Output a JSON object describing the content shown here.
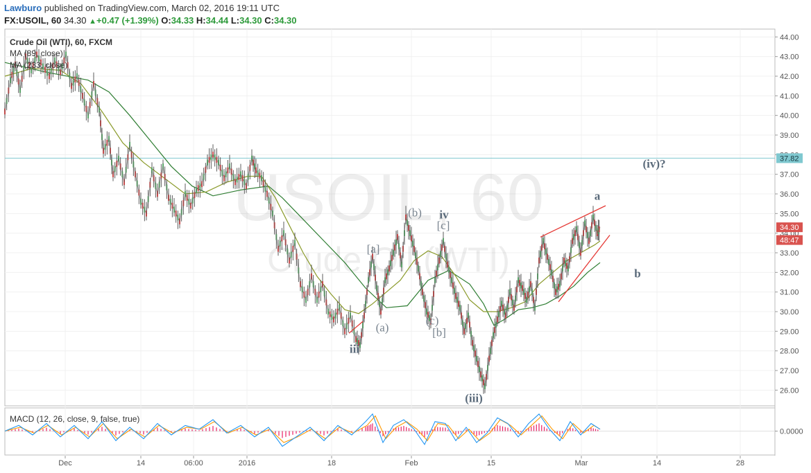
{
  "header": {
    "author": "Lawburo",
    "published_text": "published on TradingView.com, March 02, 2016 19:11 UTC",
    "symbol": "FX:USOIL, 60",
    "last": "34.30",
    "change": "+0.47 (+1.39%)",
    "o_label": "O:",
    "o_value": "34.33",
    "h_label": "H:",
    "h_value": "34.44",
    "l_label": "L:",
    "l_value": "34.30",
    "c_label": "C:",
    "c_value": "34.30"
  },
  "chart_data": {
    "type": "line",
    "title": "Crude Oil (WTI), 60, FXCM",
    "watermark": "USOIL, 60",
    "watermark_sub": "Crude Oil (WTI)",
    "indicators": [
      "MA (89, close)",
      "MA (233, close)"
    ],
    "y_axis": {
      "ticks": [
        "44.00",
        "43.00",
        "42.00",
        "41.00",
        "40.00",
        "39.00",
        "38.00",
        "37.00",
        "36.00",
        "35.00",
        "34.00",
        "33.00",
        "32.00",
        "31.00",
        "30.00",
        "29.00",
        "28.00",
        "27.00",
        "26.00"
      ],
      "range": [
        25.2,
        44.4
      ]
    },
    "x_axis": {
      "ticks": [
        "Dec",
        "14",
        "06:00",
        "2016",
        "18",
        "Feb",
        "15",
        "Mar",
        "14",
        "28"
      ]
    },
    "price_labels": [
      {
        "text": "37.82",
        "value": 37.82,
        "color": "#7fc8d0"
      },
      {
        "text": "34.30",
        "value": 34.3,
        "color": "#d9534f"
      },
      {
        "text": "48:47",
        "value": 33.65,
        "color": "#d9534f"
      }
    ],
    "horizontal_line": 37.82,
    "price_path": [
      [
        0,
        40.2
      ],
      [
        8,
        41.8
      ],
      [
        15,
        42.6
      ],
      [
        22,
        41.3
      ],
      [
        30,
        43.0
      ],
      [
        38,
        42.3
      ],
      [
        46,
        43.1
      ],
      [
        55,
        42.5
      ],
      [
        64,
        42.0
      ],
      [
        72,
        42.8
      ],
      [
        80,
        42.2
      ],
      [
        88,
        43.1
      ],
      [
        96,
        41.5
      ],
      [
        104,
        42.0
      ],
      [
        112,
        41.0
      ],
      [
        120,
        40.0
      ],
      [
        128,
        41.6
      ],
      [
        136,
        40.3
      ],
      [
        142,
        38.2
      ],
      [
        150,
        38.8
      ],
      [
        156,
        37.0
      ],
      [
        164,
        37.8
      ],
      [
        172,
        36.6
      ],
      [
        180,
        38.5
      ],
      [
        188,
        37.0
      ],
      [
        196,
        35.6
      ],
      [
        204,
        35.0
      ],
      [
        212,
        37.2
      ],
      [
        220,
        36.0
      ],
      [
        228,
        37.4
      ],
      [
        236,
        35.8
      ],
      [
        244,
        35.2
      ],
      [
        252,
        34.6
      ],
      [
        260,
        36.0
      ],
      [
        268,
        35.4
      ],
      [
        276,
        36.2
      ],
      [
        284,
        36.5
      ],
      [
        292,
        37.6
      ],
      [
        300,
        38.0
      ],
      [
        308,
        37.6
      ],
      [
        316,
        36.8
      ],
      [
        324,
        37.4
      ],
      [
        332,
        36.6
      ],
      [
        340,
        37.0
      ],
      [
        348,
        36.4
      ],
      [
        356,
        37.8
      ],
      [
        362,
        37.2
      ],
      [
        370,
        36.8
      ],
      [
        378,
        36.0
      ],
      [
        386,
        35.0
      ],
      [
        394,
        33.2
      ],
      [
        402,
        34.0
      ],
      [
        410,
        32.6
      ],
      [
        418,
        33.5
      ],
      [
        426,
        31.4
      ],
      [
        434,
        30.6
      ],
      [
        442,
        31.8
      ],
      [
        450,
        30.6
      ],
      [
        458,
        31.4
      ],
      [
        466,
        30.0
      ],
      [
        474,
        29.6
      ],
      [
        482,
        30.2
      ],
      [
        490,
        29.0
      ],
      [
        498,
        29.8
      ],
      [
        506,
        28.6
      ],
      [
        512,
        28.3
      ],
      [
        518,
        29.8
      ],
      [
        524,
        31.6
      ],
      [
        530,
        32.8
      ],
      [
        536,
        31.2
      ],
      [
        542,
        30.0
      ],
      [
        548,
        31.6
      ],
      [
        554,
        32.2
      ],
      [
        560,
        33.0
      ],
      [
        566,
        33.8
      ],
      [
        572,
        32.4
      ],
      [
        578,
        34.8
      ],
      [
        584,
        34.0
      ],
      [
        590,
        33.2
      ],
      [
        596,
        32.2
      ],
      [
        602,
        31.0
      ],
      [
        608,
        30.0
      ],
      [
        614,
        29.5
      ],
      [
        620,
        31.6
      ],
      [
        626,
        32.6
      ],
      [
        632,
        33.6
      ],
      [
        638,
        32.4
      ],
      [
        644,
        31.6
      ],
      [
        650,
        30.8
      ],
      [
        656,
        30.2
      ],
      [
        662,
        29.0
      ],
      [
        668,
        29.8
      ],
      [
        674,
        28.4
      ],
      [
        680,
        27.6
      ],
      [
        686,
        26.8
      ],
      [
        692,
        26.2
      ],
      [
        698,
        27.6
      ],
      [
        704,
        28.8
      ],
      [
        710,
        29.6
      ],
      [
        716,
        30.4
      ],
      [
        722,
        29.8
      ],
      [
        728,
        31.0
      ],
      [
        734,
        30.2
      ],
      [
        740,
        31.6
      ],
      [
        746,
        31.2
      ],
      [
        752,
        30.6
      ],
      [
        758,
        31.4
      ],
      [
        764,
        30.2
      ],
      [
        770,
        32.6
      ],
      [
        776,
        33.6
      ],
      [
        782,
        32.8
      ],
      [
        788,
        32.0
      ],
      [
        794,
        31.0
      ],
      [
        800,
        31.4
      ],
      [
        806,
        32.6
      ],
      [
        812,
        32.2
      ],
      [
        818,
        33.6
      ],
      [
        824,
        34.2
      ],
      [
        830,
        33.0
      ],
      [
        836,
        34.5
      ],
      [
        842,
        33.6
      ],
      [
        848,
        34.8
      ],
      [
        854,
        34.0
      ],
      [
        858,
        34.3
      ]
    ],
    "ma89_path": [
      [
        0,
        42.0
      ],
      [
        40,
        42.4
      ],
      [
        80,
        42.3
      ],
      [
        110,
        41.6
      ],
      [
        140,
        40.2
      ],
      [
        170,
        38.6
      ],
      [
        200,
        37.6
      ],
      [
        230,
        36.8
      ],
      [
        260,
        36.0
      ],
      [
        290,
        36.1
      ],
      [
        320,
        36.6
      ],
      [
        350,
        36.9
      ],
      [
        370,
        36.9
      ],
      [
        390,
        35.8
      ],
      [
        410,
        34.4
      ],
      [
        430,
        33.0
      ],
      [
        450,
        31.8
      ],
      [
        470,
        30.9
      ],
      [
        490,
        30.1
      ],
      [
        510,
        29.9
      ],
      [
        530,
        30.4
      ],
      [
        550,
        31.0
      ],
      [
        570,
        31.6
      ],
      [
        590,
        32.6
      ],
      [
        610,
        33.1
      ],
      [
        630,
        32.8
      ],
      [
        650,
        31.8
      ],
      [
        670,
        30.6
      ],
      [
        690,
        30.0
      ],
      [
        710,
        30.0
      ],
      [
        730,
        30.2
      ],
      [
        750,
        30.5
      ],
      [
        770,
        31.4
      ],
      [
        790,
        32.0
      ],
      [
        810,
        32.6
      ],
      [
        830,
        33.0
      ],
      [
        850,
        33.4
      ],
      [
        858,
        33.6
      ]
    ],
    "ma233_path": [
      [
        0,
        42.7
      ],
      [
        60,
        42.2
      ],
      [
        120,
        41.8
      ],
      [
        150,
        41.2
      ],
      [
        180,
        40.0
      ],
      [
        210,
        38.7
      ],
      [
        240,
        37.4
      ],
      [
        270,
        36.4
      ],
      [
        300,
        35.9
      ],
      [
        340,
        36.2
      ],
      [
        380,
        36.4
      ],
      [
        400,
        35.8
      ],
      [
        430,
        34.7
      ],
      [
        460,
        33.6
      ],
      [
        490,
        32.5
      ],
      [
        520,
        31.2
      ],
      [
        550,
        30.2
      ],
      [
        580,
        30.3
      ],
      [
        610,
        31.6
      ],
      [
        640,
        32.1
      ],
      [
        670,
        31.4
      ],
      [
        690,
        30.4
      ],
      [
        705,
        29.3
      ],
      [
        720,
        29.6
      ],
      [
        740,
        30.1
      ],
      [
        760,
        30.2
      ],
      [
        780,
        30.4
      ],
      [
        800,
        30.8
      ],
      [
        820,
        31.3
      ],
      [
        840,
        32.0
      ],
      [
        858,
        32.5
      ]
    ],
    "trendlines": [
      {
        "from": [
          772,
          33.8
        ],
        "to": [
          866,
          35.4
        ]
      },
      {
        "from": [
          798,
          30.5
        ],
        "to": [
          872,
          33.9
        ]
      },
      {
        "from": [
          496,
          28.9
        ],
        "to": [
          516,
          29.5
        ]
      }
    ],
    "wave_labels": [
      {
        "text": "iii",
        "x": 504,
        "value": 27.9,
        "bold": true
      },
      {
        "text": "[a]",
        "x": 531,
        "value": 33.0,
        "bold": false
      },
      {
        "text": "(a)",
        "x": 544,
        "value": 29.0,
        "bold": false
      },
      {
        "text": "(b)",
        "x": 591,
        "value": 34.85,
        "bold": false
      },
      {
        "text": "iv",
        "x": 633,
        "value": 34.75,
        "bold": true
      },
      {
        "text": "[c]",
        "x": 632,
        "value": 34.2,
        "bold": false
      },
      {
        "text": "(c)",
        "x": 616,
        "value": 29.35,
        "bold": false
      },
      {
        "text": "[b]",
        "x": 626,
        "value": 28.75,
        "bold": false
      },
      {
        "text": "(iii)",
        "x": 676,
        "value": 25.4,
        "bold": true
      },
      {
        "text": "a",
        "x": 854,
        "value": 35.7,
        "bold": true
      },
      {
        "text": "(iv)?",
        "x": 936,
        "value": 37.35,
        "bold": true
      },
      {
        "text": "b",
        "x": 912,
        "value": 31.75,
        "bold": true
      }
    ],
    "macd": {
      "label": "MACD (12, 26, close, 9, false, true)",
      "axis_label": "0.0000",
      "range": [
        -1.0,
        1.0
      ],
      "macd_path": [
        [
          0,
          0.0
        ],
        [
          20,
          0.3
        ],
        [
          40,
          -0.2
        ],
        [
          60,
          0.4
        ],
        [
          80,
          -0.3
        ],
        [
          100,
          0.3
        ],
        [
          120,
          -0.4
        ],
        [
          140,
          0.5
        ],
        [
          160,
          -0.5
        ],
        [
          180,
          0.2
        ],
        [
          200,
          -0.4
        ],
        [
          220,
          0.4
        ],
        [
          240,
          -0.2
        ],
        [
          260,
          0.3
        ],
        [
          280,
          0.1
        ],
        [
          300,
          0.6
        ],
        [
          320,
          -0.1
        ],
        [
          340,
          0.3
        ],
        [
          360,
          -0.3
        ],
        [
          380,
          0.2
        ],
        [
          400,
          -0.8
        ],
        [
          420,
          -0.3
        ],
        [
          440,
          0.2
        ],
        [
          460,
          -0.5
        ],
        [
          480,
          0.3
        ],
        [
          500,
          -0.2
        ],
        [
          520,
          0.5
        ],
        [
          530,
          0.9
        ],
        [
          545,
          -0.6
        ],
        [
          560,
          0.3
        ],
        [
          575,
          0.6
        ],
        [
          590,
          0.1
        ],
        [
          605,
          -0.7
        ],
        [
          620,
          0.5
        ],
        [
          635,
          0.4
        ],
        [
          650,
          -0.5
        ],
        [
          665,
          0.2
        ],
        [
          680,
          -0.6
        ],
        [
          695,
          -0.1
        ],
        [
          710,
          0.7
        ],
        [
          725,
          0.4
        ],
        [
          740,
          -0.3
        ],
        [
          755,
          0.4
        ],
        [
          770,
          0.9
        ],
        [
          785,
          0.1
        ],
        [
          800,
          -0.5
        ],
        [
          815,
          0.5
        ],
        [
          830,
          -0.2
        ],
        [
          845,
          0.4
        ],
        [
          858,
          0.1
        ]
      ],
      "signal_path": [
        [
          0,
          0.0
        ],
        [
          22,
          0.2
        ],
        [
          42,
          -0.1
        ],
        [
          62,
          0.3
        ],
        [
          82,
          -0.2
        ],
        [
          102,
          0.2
        ],
        [
          122,
          -0.3
        ],
        [
          142,
          0.4
        ],
        [
          162,
          -0.4
        ],
        [
          182,
          0.1
        ],
        [
          202,
          -0.3
        ],
        [
          222,
          0.3
        ],
        [
          242,
          -0.1
        ],
        [
          262,
          0.2
        ],
        [
          282,
          0.1
        ],
        [
          302,
          0.5
        ],
        [
          322,
          -0.1
        ],
        [
          342,
          0.2
        ],
        [
          362,
          -0.2
        ],
        [
          382,
          0.1
        ],
        [
          402,
          -0.6
        ],
        [
          422,
          -0.3
        ],
        [
          442,
          0.1
        ],
        [
          462,
          -0.4
        ],
        [
          482,
          0.2
        ],
        [
          502,
          -0.1
        ],
        [
          522,
          0.3
        ],
        [
          534,
          0.8
        ],
        [
          549,
          -0.4
        ],
        [
          564,
          0.2
        ],
        [
          579,
          0.5
        ],
        [
          594,
          0.1
        ],
        [
          609,
          -0.5
        ],
        [
          624,
          0.4
        ],
        [
          639,
          0.3
        ],
        [
          654,
          -0.4
        ],
        [
          669,
          0.1
        ],
        [
          684,
          -0.5
        ],
        [
          699,
          -0.1
        ],
        [
          714,
          0.6
        ],
        [
          729,
          0.3
        ],
        [
          744,
          -0.2
        ],
        [
          759,
          0.3
        ],
        [
          774,
          0.8
        ],
        [
          789,
          0.1
        ],
        [
          804,
          -0.4
        ],
        [
          819,
          0.4
        ],
        [
          834,
          -0.1
        ],
        [
          849,
          0.3
        ],
        [
          858,
          0.1
        ]
      ]
    }
  }
}
